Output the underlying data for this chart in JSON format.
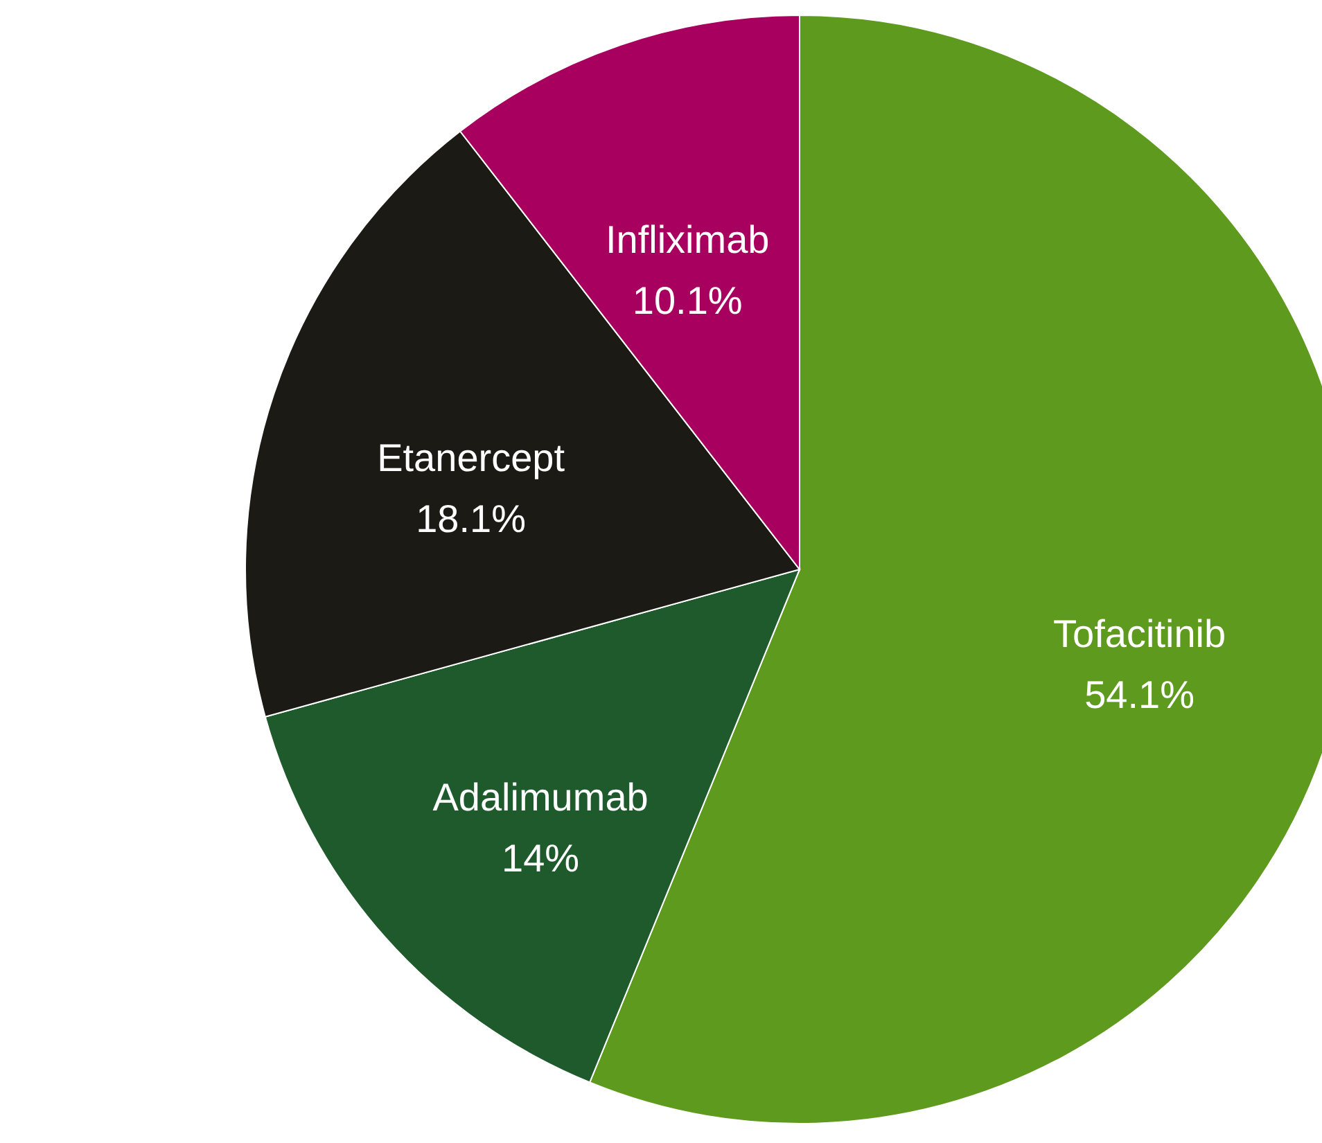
{
  "chart_data": {
    "type": "pie",
    "categories": [
      "Tofacitinib",
      "Adalimumab",
      "Etanercept",
      "Infliximab"
    ],
    "values": [
      54.1,
      14,
      18.1,
      10.1
    ],
    "value_labels": [
      "54.1%",
      "14%",
      "18.1%",
      "10.1%"
    ],
    "colors": [
      "#5e9a1e",
      "#1e5a2c",
      "#1c1a15",
      "#a8005e"
    ]
  }
}
